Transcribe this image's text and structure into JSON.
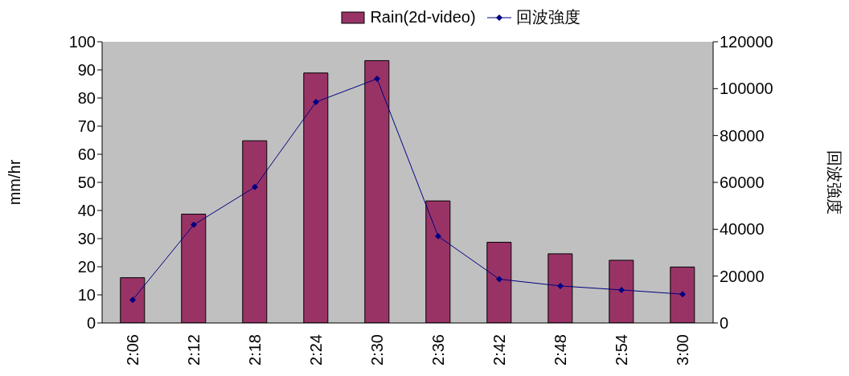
{
  "chart_data": {
    "type": "bar",
    "categories": [
      "2:06",
      "2:12",
      "2:18",
      "2:24",
      "2:30",
      "2:36",
      "2:42",
      "2:48",
      "2:54",
      "3:00"
    ],
    "series": [
      {
        "name": "Rain(2d-video)",
        "color": "#993366",
        "values": [
          16.1,
          38.7,
          64.8,
          88.9,
          93.3,
          43.4,
          28.7,
          24.6,
          22.3,
          19.9
        ]
      },
      {
        "name": "回波強度",
        "type": "line",
        "axis": "y2",
        "color": "#000080",
        "marker": "diamond",
        "values": [
          9900,
          41900,
          58000,
          94300,
          104200,
          37000,
          18700,
          15800,
          14100,
          12300
        ]
      }
    ],
    "ylabel": "mm/hr",
    "y2label": "回波強度",
    "ylim": [
      0,
      100
    ],
    "yticks": [
      0,
      10,
      20,
      30,
      40,
      50,
      60,
      70,
      80,
      90,
      100
    ],
    "y2lim": [
      0,
      120000
    ],
    "y2ticks": [
      0,
      20000,
      40000,
      60000,
      80000,
      100000,
      120000
    ],
    "grid": false,
    "legend": "top"
  }
}
